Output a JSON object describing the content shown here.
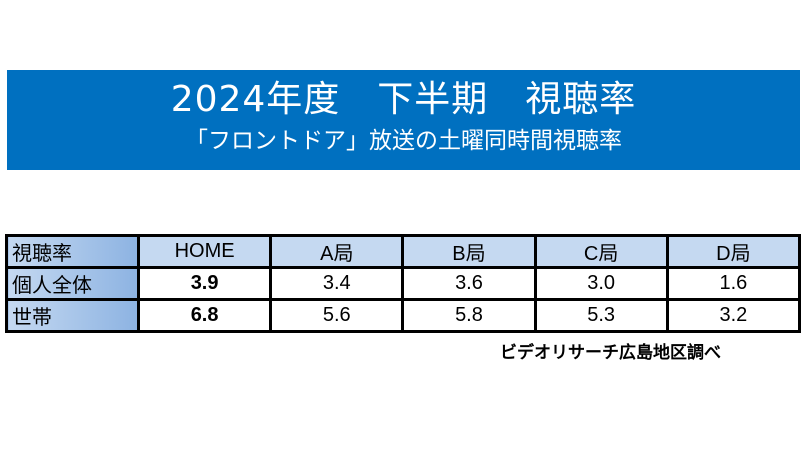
{
  "banner": {
    "title": "2024年度　下半期　視聴率",
    "subtitle": "「フロントドア」放送の土曜同時間視聴率"
  },
  "table": {
    "headers": [
      "視聴率",
      "HOME",
      "A局",
      "B局",
      "C局",
      "D局"
    ],
    "rows": [
      {
        "label": "個人全体",
        "values": [
          "3.9",
          "3.4",
          "3.6",
          "3.0",
          "1.6"
        ]
      },
      {
        "label": "世帯",
        "values": [
          "6.8",
          "5.6",
          "5.8",
          "5.3",
          "3.2"
        ]
      }
    ]
  },
  "source": "ビデオリサーチ広島地区調べ",
  "colors": {
    "banner": "#0070c0",
    "header": "#c5d9f1",
    "label": "#8db3e2"
  }
}
